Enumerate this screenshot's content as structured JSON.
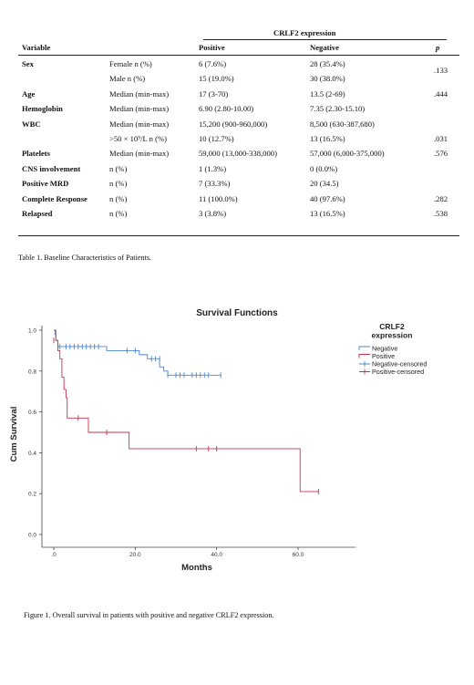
{
  "table": {
    "group_header": "CRLF2 expression",
    "columns": {
      "variable": "Variable",
      "positive": "Positive",
      "negative": "Negative",
      "p": "p"
    },
    "rows": [
      {
        "variable": "Sex",
        "stat": "Female n (%)",
        "positive": "6 (7.6%)",
        "negative": "28 (35.4%)",
        "p": ""
      },
      {
        "variable": "",
        "stat": "Male n (%)",
        "positive": "15 (19.0%)",
        "negative": "30 (38.0%)",
        "p": ""
      },
      {
        "variable": "Age",
        "stat": "Median (min-max)",
        "positive": "17 (3-70)",
        "negative": "13.5 (2-69)",
        "p": ".444"
      },
      {
        "variable": "Hemoglobin",
        "stat": "Median (min-max)",
        "positive": "6.90 (2.80-10.00)",
        "negative": "7.35 (2.30-15.10)",
        "p": ""
      },
      {
        "variable": "WBC",
        "stat": "Median (min-max)",
        "positive": "15,200 (900-960,000)",
        "negative": "8,500 (630-387,680)",
        "p": ""
      },
      {
        "variable": "",
        "stat": ">50 × 10⁹/L n (%)",
        "positive": "10 (12.7%)",
        "negative": "13 (16.5%)",
        "p": ".031"
      },
      {
        "variable": "Platelets",
        "stat": "Median (min-max)",
        "positive": "59,000 (13,000-338,000)",
        "negative": "57,000 (6,000-375,000)",
        "p": ".576"
      },
      {
        "variable": "CNS involvement",
        "stat": "n (%)",
        "positive": "1 (1.3%)",
        "negative": "0 (0.0%)",
        "p": ""
      },
      {
        "variable": "Positive MRD",
        "stat": "n (%)",
        "positive": "7 (33.3%)",
        "negative": "20 (34.5)",
        "p": ""
      },
      {
        "variable": "Complete Response",
        "stat": "n (%)",
        "positive": "11 (100.0%)",
        "negative": "40 (97.6%)",
        "p": ".282"
      },
      {
        "variable": "Relapsed",
        "stat": "n (%)",
        "positive": "3 (3.8%)",
        "negative": "13 (16.5%)",
        "p": ".538"
      }
    ],
    "sex_p": ".133",
    "caption": "Table 1. Baseline Characteristics of Patients."
  },
  "figure": {
    "caption": "Figure 1. Overall survival in patients with positive and negative CRLF2 expression."
  },
  "chart_data": {
    "type": "line",
    "title": "Survival Functions",
    "xlabel": "Months",
    "ylabel": "Cum Survival",
    "xlim": [
      0,
      70
    ],
    "ylim": [
      0,
      1.0
    ],
    "x_ticks": [
      ".0",
      "20.0",
      "40.0",
      "60.0"
    ],
    "x_tick_values": [
      0,
      20,
      40,
      60
    ],
    "y_ticks": [
      "0.0",
      "0.2",
      "0.4",
      "0.6",
      "0.8",
      "1.0"
    ],
    "y_tick_values": [
      0,
      0.2,
      0.4,
      0.6,
      0.8,
      1.0
    ],
    "grid": false,
    "legend_title_lines": [
      "CRLF2",
      "expression"
    ],
    "legend_position": "right",
    "series": [
      {
        "name": "Negative",
        "color": "#4a86c8",
        "steps": [
          [
            0,
            1.0
          ],
          [
            0.3,
            0.98
          ],
          [
            0.5,
            0.95
          ],
          [
            1,
            0.92
          ],
          [
            13,
            0.9
          ],
          [
            21,
            0.88
          ],
          [
            23,
            0.86
          ],
          [
            26,
            0.82
          ],
          [
            27,
            0.8
          ],
          [
            28,
            0.78
          ],
          [
            41,
            0.78
          ]
        ],
        "censored_name": "Negative-censored",
        "censored": [
          [
            1.5,
            0.92
          ],
          [
            3,
            0.92
          ],
          [
            4,
            0.92
          ],
          [
            5,
            0.92
          ],
          [
            6,
            0.92
          ],
          [
            7,
            0.92
          ],
          [
            8,
            0.92
          ],
          [
            9,
            0.92
          ],
          [
            10,
            0.92
          ],
          [
            11,
            0.92
          ],
          [
            18,
            0.9
          ],
          [
            20,
            0.9
          ],
          [
            24,
            0.86
          ],
          [
            25,
            0.86
          ],
          [
            26,
            0.86
          ],
          [
            28,
            0.78
          ],
          [
            30,
            0.78
          ],
          [
            31,
            0.78
          ],
          [
            32,
            0.78
          ],
          [
            34,
            0.78
          ],
          [
            35,
            0.78
          ],
          [
            36,
            0.78
          ],
          [
            37,
            0.78
          ],
          [
            38,
            0.78
          ],
          [
            41,
            0.78
          ]
        ]
      },
      {
        "name": "Positive",
        "color": "#c8324e",
        "steps": [
          [
            0,
            1.0
          ],
          [
            0.5,
            0.95
          ],
          [
            1,
            0.9
          ],
          [
            1.5,
            0.86
          ],
          [
            2,
            0.77
          ],
          [
            2.5,
            0.71
          ],
          [
            3,
            0.67
          ],
          [
            3.3,
            0.57
          ],
          [
            8,
            0.57
          ],
          [
            8.5,
            0.5
          ],
          [
            18,
            0.5
          ],
          [
            18.5,
            0.42
          ],
          [
            60,
            0.42
          ],
          [
            60.5,
            0.21
          ],
          [
            65,
            0.21
          ]
        ],
        "censored_name": "Positive-censored",
        "censored": [
          [
            0,
            0.95
          ],
          [
            6,
            0.57
          ],
          [
            13,
            0.5
          ],
          [
            35,
            0.42
          ],
          [
            38,
            0.42
          ],
          [
            40,
            0.42
          ],
          [
            65,
            0.21
          ]
        ]
      }
    ]
  }
}
